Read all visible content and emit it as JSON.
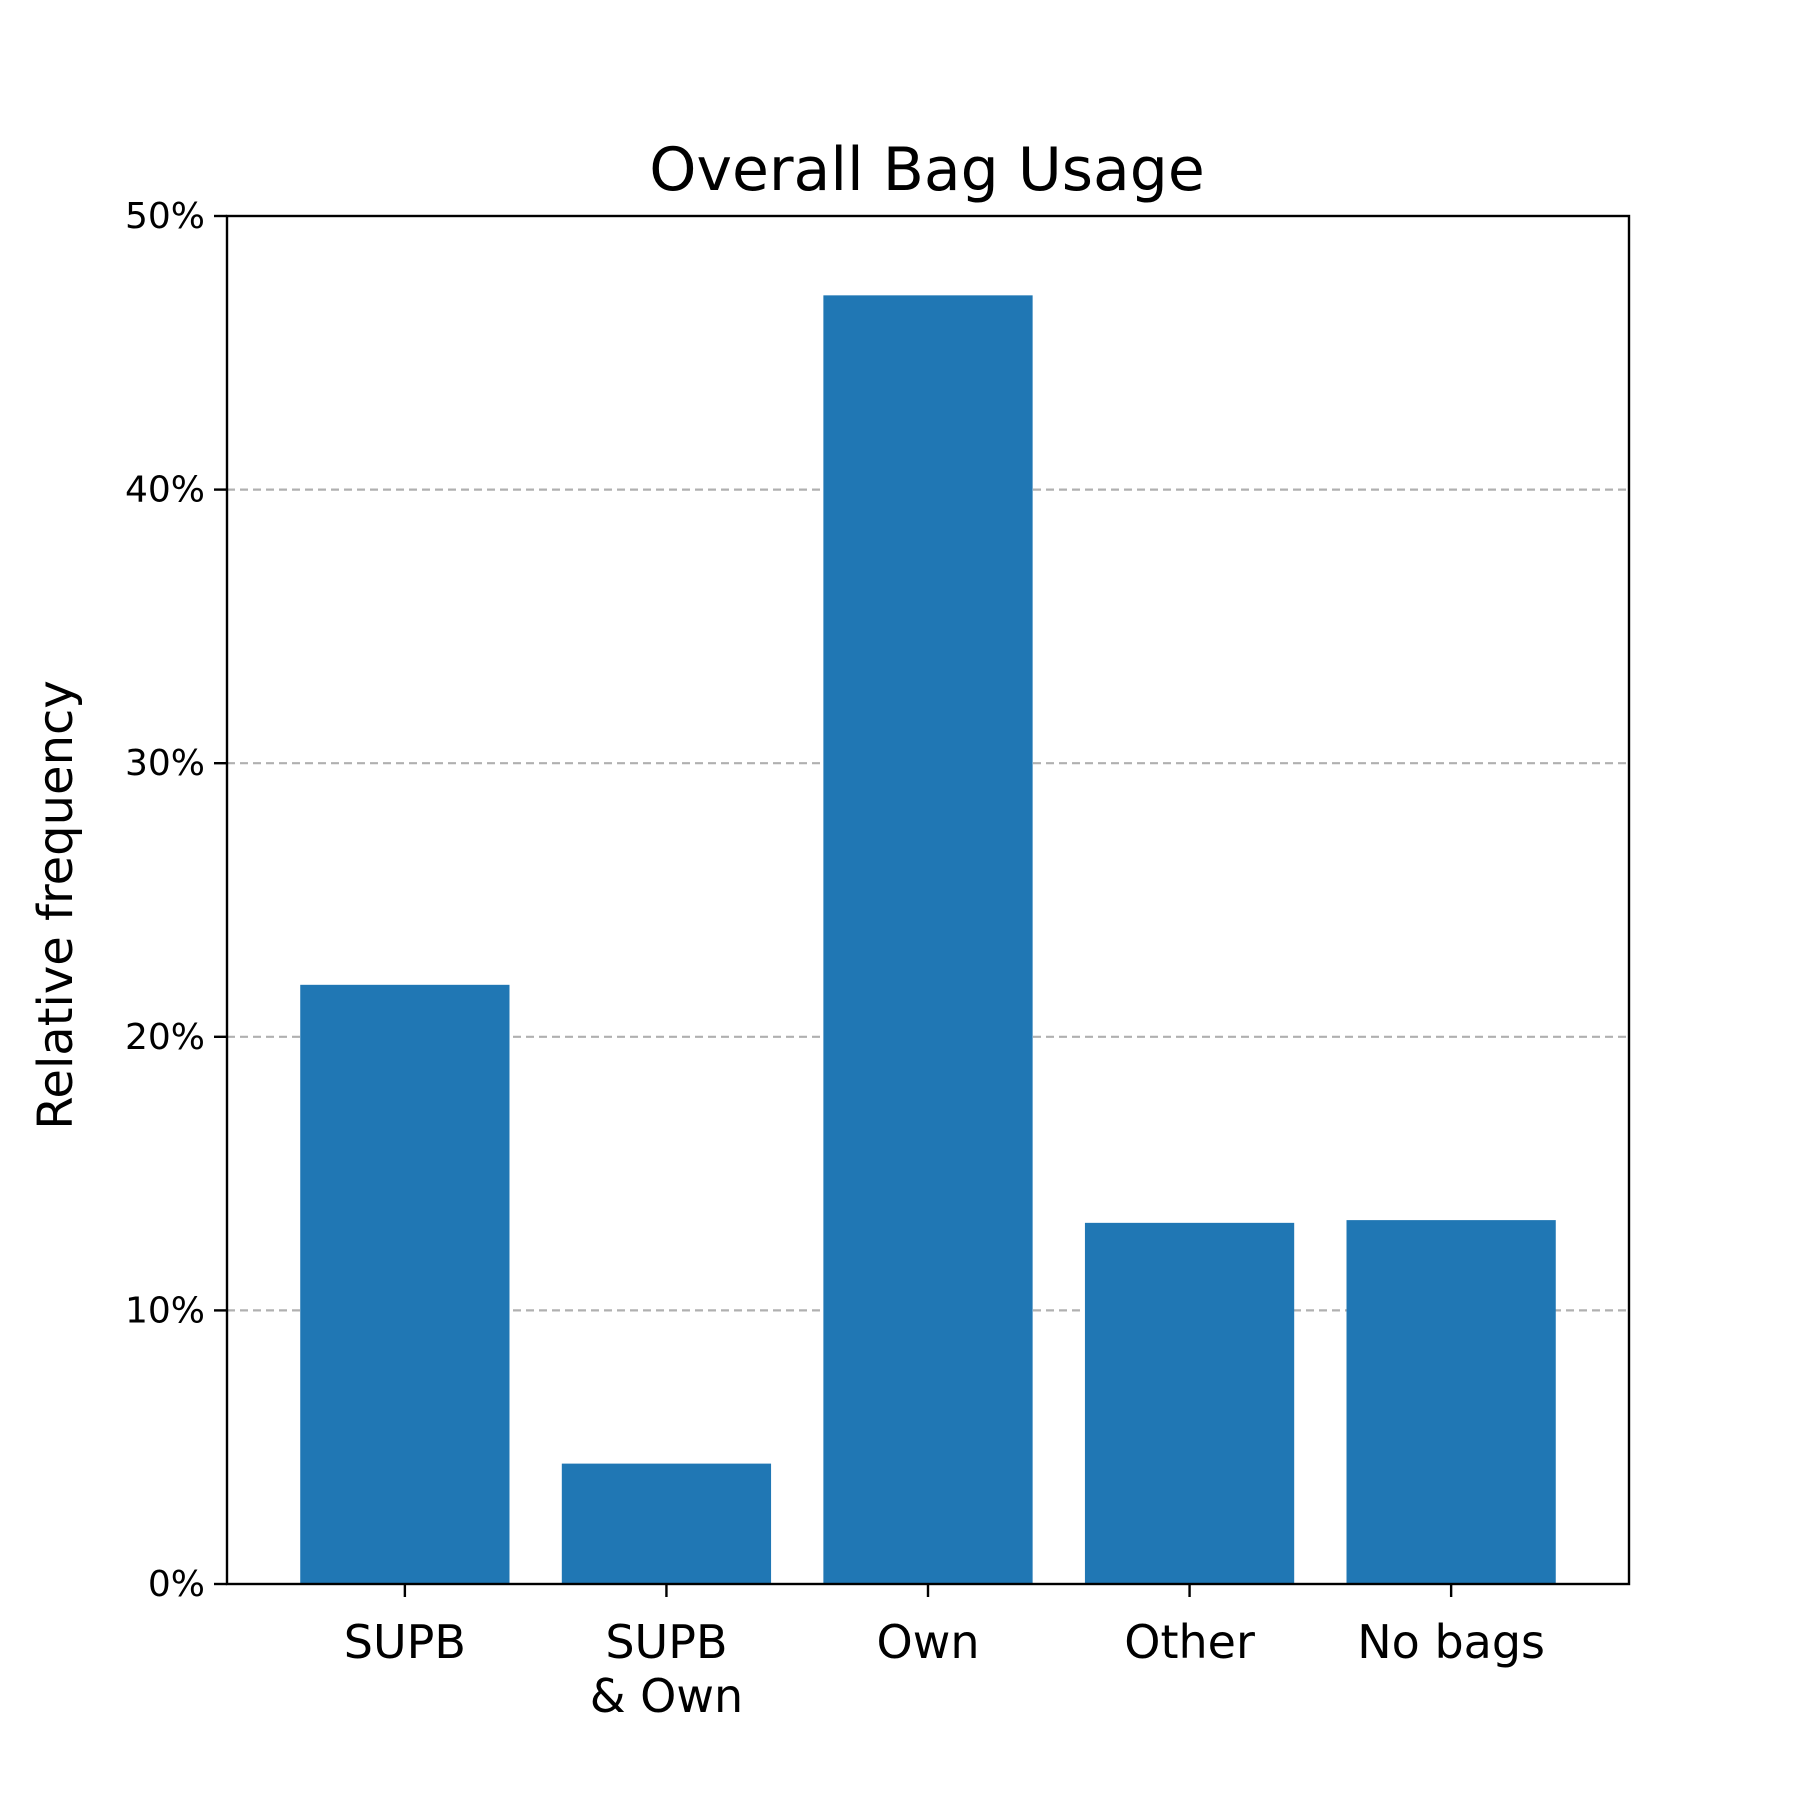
{
  "chart_data": {
    "type": "bar",
    "title": "Overall Bag Usage",
    "xlabel": "",
    "ylabel": "Relative frequency",
    "categories": [
      [
        "SUPB"
      ],
      [
        "SUPB",
        "& Own"
      ],
      [
        "Own"
      ],
      [
        "Other"
      ],
      [
        "No bags"
      ]
    ],
    "values": [
      21.9,
      4.4,
      47.1,
      13.2,
      13.3
    ],
    "ylim": [
      0,
      50
    ],
    "yticks": [
      0,
      10,
      20,
      30,
      40,
      50
    ],
    "ytick_labels": [
      "0%",
      "10%",
      "20%",
      "30%",
      "40%",
      "50%"
    ],
    "grid": "y, dashed",
    "legend": "none",
    "bar_color": "#2077b4",
    "grid_color": "#b0b0b0"
  }
}
